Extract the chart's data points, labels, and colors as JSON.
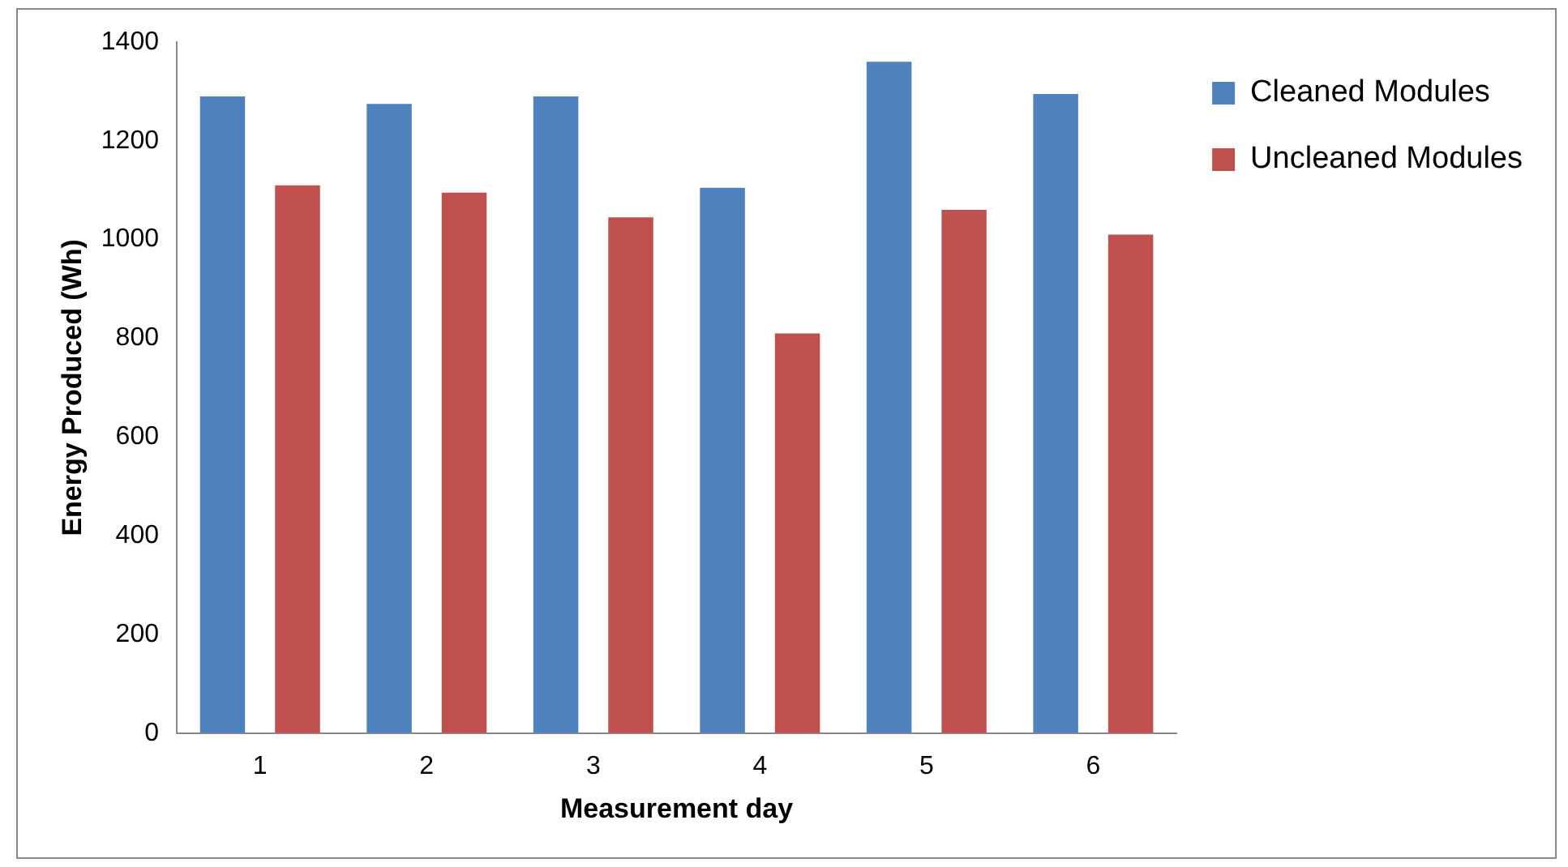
{
  "chart_data": {
    "type": "bar",
    "xlabel": "Measurement day",
    "ylabel": "Energy Produced (Wh)",
    "categories": [
      "1",
      "2",
      "3",
      "4",
      "5",
      "6"
    ],
    "series": [
      {
        "name": "Cleaned Modules",
        "color": "#4f81bd",
        "values": [
          1290,
          1275,
          1290,
          1105,
          1360,
          1295
        ]
      },
      {
        "name": "Uncleaned Modules",
        "color": "#c0504d",
        "values": [
          1110,
          1095,
          1045,
          810,
          1060,
          1010
        ]
      }
    ],
    "ylim": [
      0,
      1400
    ],
    "yticks": [
      0,
      200,
      400,
      600,
      800,
      1000,
      1200,
      1400
    ],
    "grid": false,
    "legend": "top right"
  }
}
